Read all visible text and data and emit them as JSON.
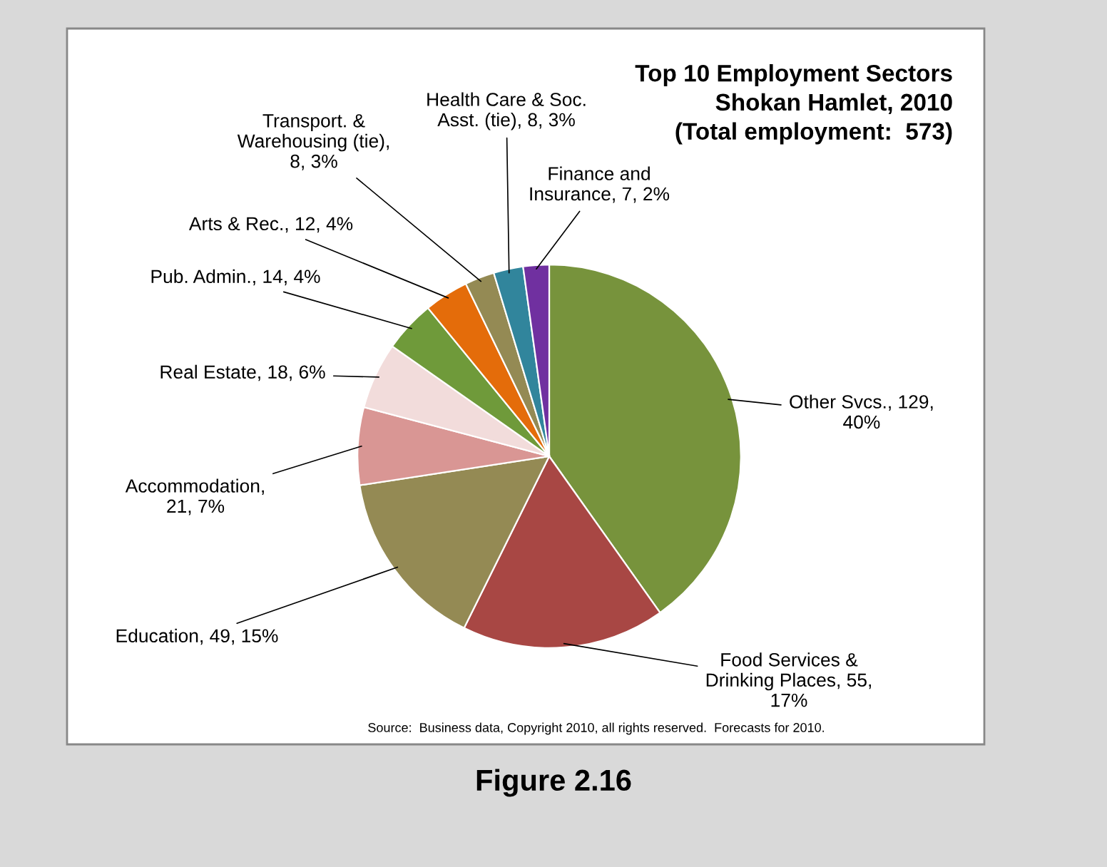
{
  "chart_data": {
    "type": "pie",
    "title": "Top 10 Employment Sectors\nShokan Hamlet, 2010\n(Total employment:  573)",
    "categories": [
      "Other Svcs.",
      "Food Services &\nDrinking Places",
      "Education",
      "Accommodation",
      "Real Estate",
      "Pub. Admin.",
      "Arts & Rec.",
      "Transport. &\nWarehousing (tie)",
      "Health Care & Soc.\nAsst. (tie)",
      "Finance and\nInsurance"
    ],
    "values": [
      129,
      55,
      49,
      21,
      18,
      14,
      12,
      8,
      8,
      7
    ],
    "colors": [
      "#77933c",
      "#a84744",
      "#948a54",
      "#d99694",
      "#f2dcdb",
      "#6f9a3a",
      "#e46c0a",
      "#948a54",
      "#31859c",
      "#7030a0"
    ],
    "value_labels": [
      ", 129,\n40%",
      ", 55,\n17%",
      ", 49, 15%",
      ",\n21, 7%",
      ", 18, 6%",
      ", 14, 4%",
      ", 12, 4%",
      ",\n8, 3%",
      ", 8, 3%",
      ", 7, 2%"
    ],
    "annotations": [
      "Source:  Business data, Copyright 2010, all rights reserved.  Forecasts for 2010.",
      "Figure 2.16"
    ]
  }
}
